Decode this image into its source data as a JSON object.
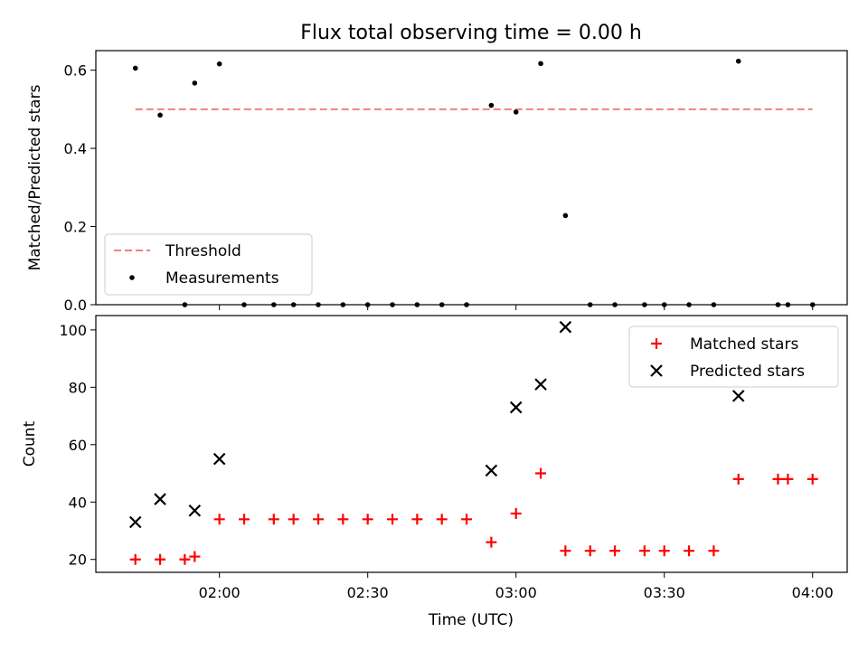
{
  "chart_data": [
    {
      "type": "scatter",
      "title": "Flux total observing time = 0.00 h",
      "xlabel": "",
      "ylabel": "Matched/Predicted stars",
      "ylim": [
        0,
        0.65
      ],
      "yticks": [
        0.0,
        0.2,
        0.4,
        0.6
      ],
      "ytick_labels": [
        "0.0",
        "0.2",
        "0.4",
        "0.6"
      ],
      "grid": false,
      "legend": "lower-left",
      "series": [
        {
          "name": "Threshold",
          "style": "dashed-line",
          "color": "#f08080",
          "x": [
            "01:43",
            "04:00"
          ],
          "y": [
            0.5,
            0.5
          ]
        },
        {
          "name": "Measurements",
          "style": "dot",
          "color": "#000000",
          "x": [
            "01:43",
            "01:48",
            "01:53",
            "01:55",
            "02:00",
            "02:05",
            "02:11",
            "02:15",
            "02:20",
            "02:25",
            "02:30",
            "02:35",
            "02:40",
            "02:45",
            "02:50",
            "02:55",
            "03:00",
            "03:05",
            "03:10",
            "03:15",
            "03:20",
            "03:26",
            "03:30",
            "03:35",
            "03:40",
            "03:45",
            "03:53",
            "03:55",
            "04:00"
          ],
          "y": [
            0.605,
            0.485,
            0.0,
            0.567,
            0.616,
            0.0,
            0.0,
            0.0,
            0.0,
            0.0,
            0.0,
            0.0,
            0.0,
            0.0,
            0.0,
            0.51,
            0.493,
            0.617,
            0.228,
            0.0,
            0.0,
            0.0,
            0.0,
            0.0,
            0.0,
            0.623,
            0.0,
            0.0,
            0.0
          ]
        }
      ]
    },
    {
      "type": "scatter",
      "xlabel": "Time (UTC)",
      "ylabel": "Count",
      "ylim": [
        15.5,
        105
      ],
      "yticks": [
        20,
        40,
        60,
        80,
        100
      ],
      "ytick_labels": [
        "20",
        "40",
        "60",
        "80",
        "100"
      ],
      "xticks": [
        "02:00",
        "02:30",
        "03:00",
        "03:30",
        "04:00"
      ],
      "xtick_labels": [
        "02:00",
        "02:30",
        "03:00",
        "03:30",
        "04:00"
      ],
      "xlim": [
        "01:35",
        "04:07"
      ],
      "grid": false,
      "legend": "top-right",
      "series": [
        {
          "name": "Matched stars",
          "marker": "plus",
          "color": "#ff0000",
          "x": [
            "01:43",
            "01:48",
            "01:53",
            "01:55",
            "02:00",
            "02:05",
            "02:11",
            "02:15",
            "02:20",
            "02:25",
            "02:30",
            "02:35",
            "02:40",
            "02:45",
            "02:50",
            "02:55",
            "03:00",
            "03:05",
            "03:10",
            "03:15",
            "03:20",
            "03:26",
            "03:30",
            "03:35",
            "03:40",
            "03:45",
            "03:53",
            "03:55",
            "04:00"
          ],
          "y": [
            20,
            20,
            20,
            21,
            34,
            34,
            34,
            34,
            34,
            34,
            34,
            34,
            34,
            34,
            34,
            26,
            36,
            50,
            23,
            23,
            23,
            23,
            23,
            23,
            23,
            48,
            48,
            48,
            48
          ]
        },
        {
          "name": "Predicted stars",
          "marker": "x",
          "color": "#000000",
          "x": [
            "01:43",
            "01:48",
            "01:55",
            "02:00",
            "02:55",
            "03:00",
            "03:05",
            "03:10",
            "03:45"
          ],
          "y": [
            33,
            41,
            37,
            55,
            51,
            73,
            81,
            101,
            77
          ]
        }
      ]
    }
  ]
}
